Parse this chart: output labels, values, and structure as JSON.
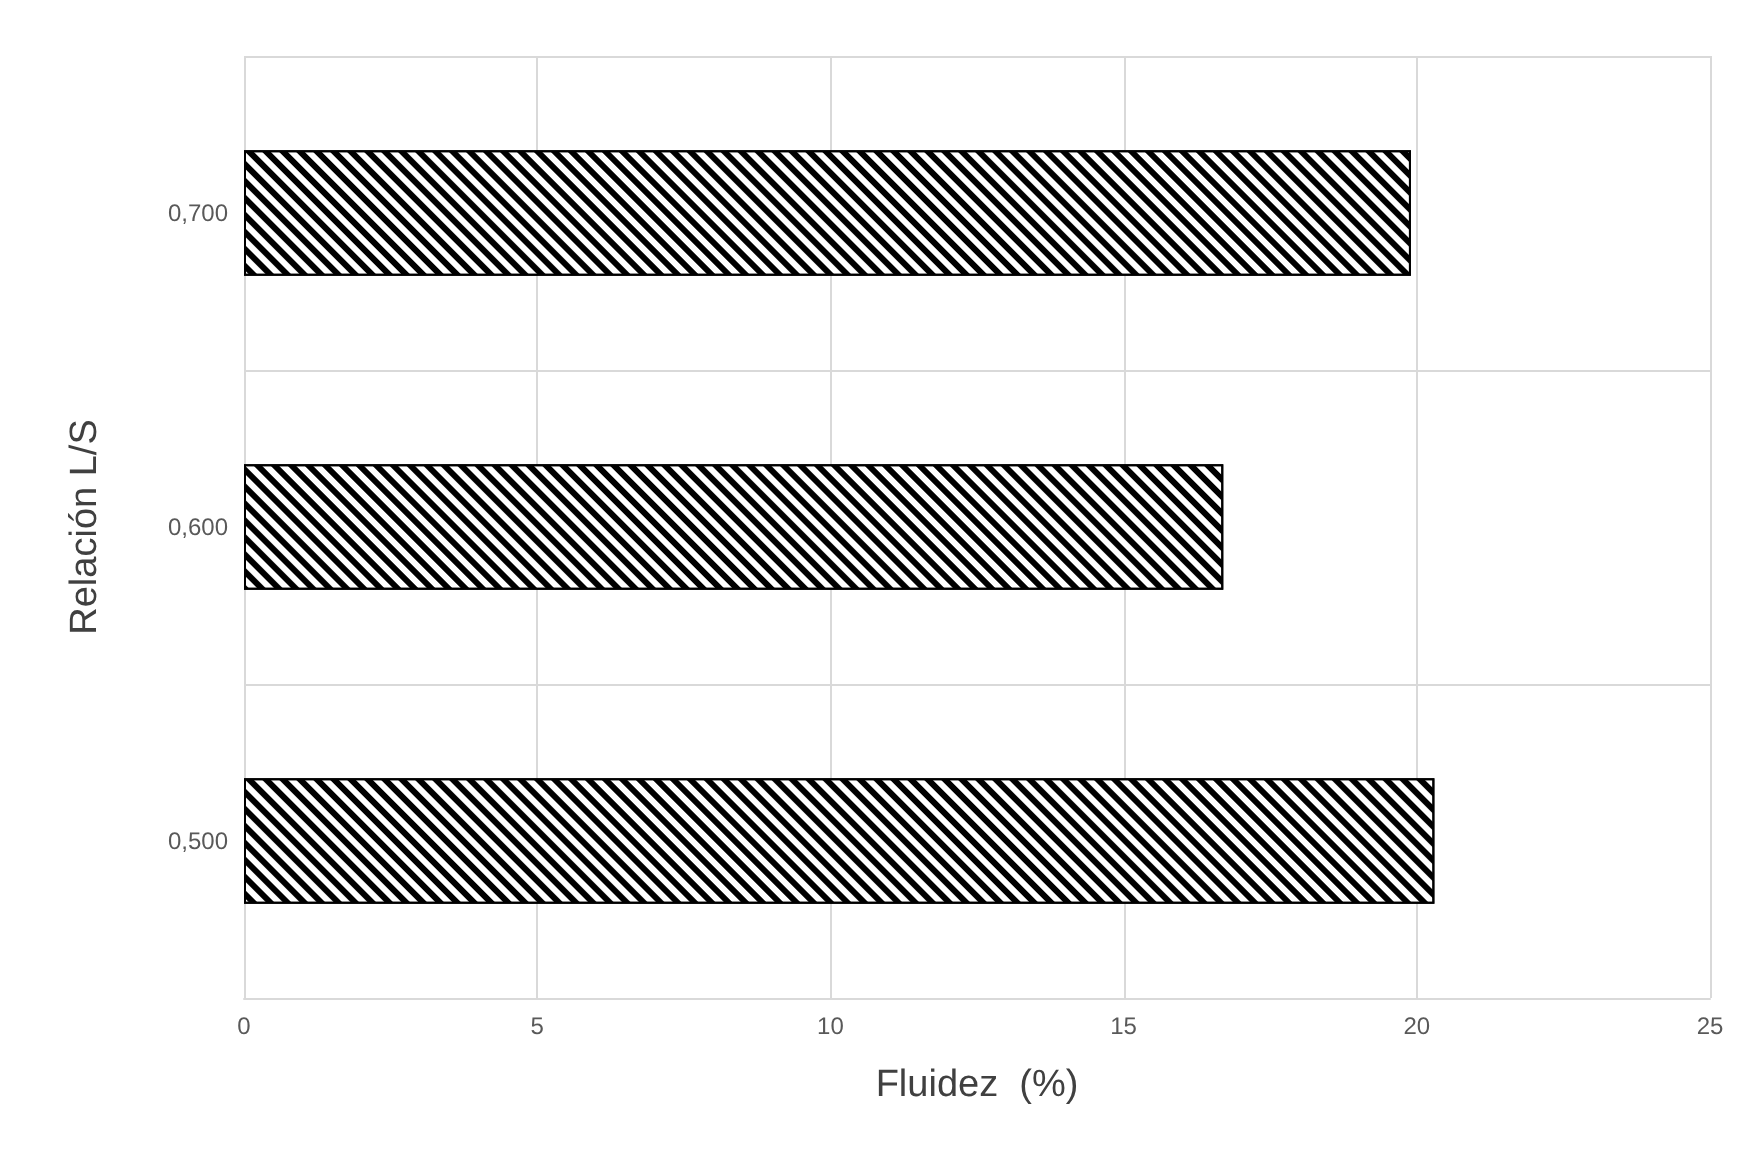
{
  "chart_data": {
    "type": "bar",
    "orientation": "horizontal",
    "xlabel": "Fluidez  (%)",
    "ylabel": "Relación L/S",
    "categories": [
      "0,700",
      "0,600",
      "0,500"
    ],
    "values": [
      19.9,
      16.7,
      20.3
    ],
    "color": "#000000",
    "xlim": [
      0,
      25
    ],
    "xticks": [
      0,
      5,
      10,
      15,
      20,
      25
    ],
    "grid": true
  }
}
